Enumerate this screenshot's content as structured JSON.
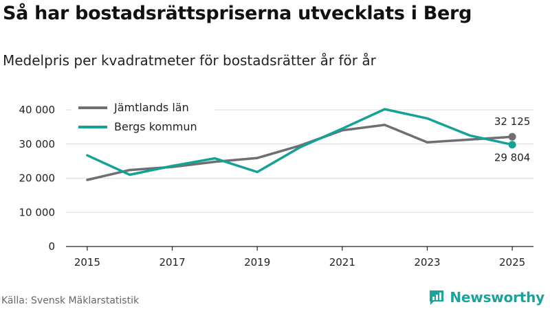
{
  "title": "Så har bostadsrättspriserna utvecklats i Berg",
  "subtitle": "Medelpris per kvadratmeter för bostadsrätter år för år",
  "source": "Källa: Svensk Mäklarstatistik",
  "brand": {
    "name": "Newsworthy",
    "icon": "newsworthy-logo-icon",
    "color": "#1aa39a"
  },
  "chart_data": {
    "type": "line",
    "title": "Så har bostadsrättspriserna utvecklats i Berg",
    "subtitle": "Medelpris per kvadratmeter för bostadsrätter år för år",
    "xlabel": "",
    "ylabel": "",
    "x": [
      2015,
      2016,
      2017,
      2018,
      2019,
      2020,
      2021,
      2022,
      2023,
      2024,
      2025
    ],
    "xticks": [
      "2015",
      "2017",
      "2019",
      "2021",
      "2023",
      "2025"
    ],
    "xlim": [
      2014.5,
      2025.5
    ],
    "yticks": [
      "0",
      "10 000",
      "20 000",
      "30 000",
      "40 000"
    ],
    "ylim": [
      0,
      40000
    ],
    "legend_position": "top-left",
    "series": [
      {
        "name": "Jämtlands län",
        "color": "#6e6e73",
        "values": [
          19500,
          22400,
          23300,
          24800,
          25900,
          29500,
          34000,
          35600,
          30500,
          31300,
          32125
        ],
        "end_label": "32 125"
      },
      {
        "name": "Bergs kommun",
        "color": "#14a297",
        "values": [
          26700,
          21000,
          23600,
          25800,
          21800,
          29000,
          34500,
          40200,
          37500,
          32500,
          29804
        ],
        "end_label": "29 804"
      }
    ]
  }
}
